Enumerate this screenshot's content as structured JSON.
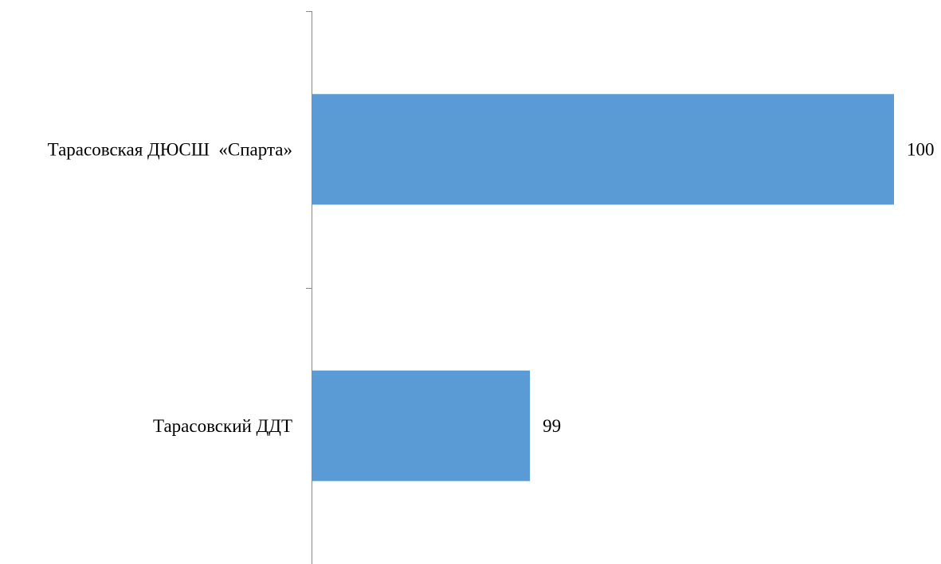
{
  "chart_data": {
    "type": "bar",
    "orientation": "horizontal",
    "categories": [
      "Тарасовская ДЮСШ  «Спарта»",
      "Тарасовский ДДТ"
    ],
    "values": [
      100,
      99
    ],
    "value_labels": [
      "100",
      "99"
    ],
    "xlim": [
      98.4,
      100
    ],
    "grid": false,
    "legend": "none",
    "colors": {
      "bar": "#5B9BD5",
      "axis": "#898989",
      "text": "#000000"
    }
  }
}
